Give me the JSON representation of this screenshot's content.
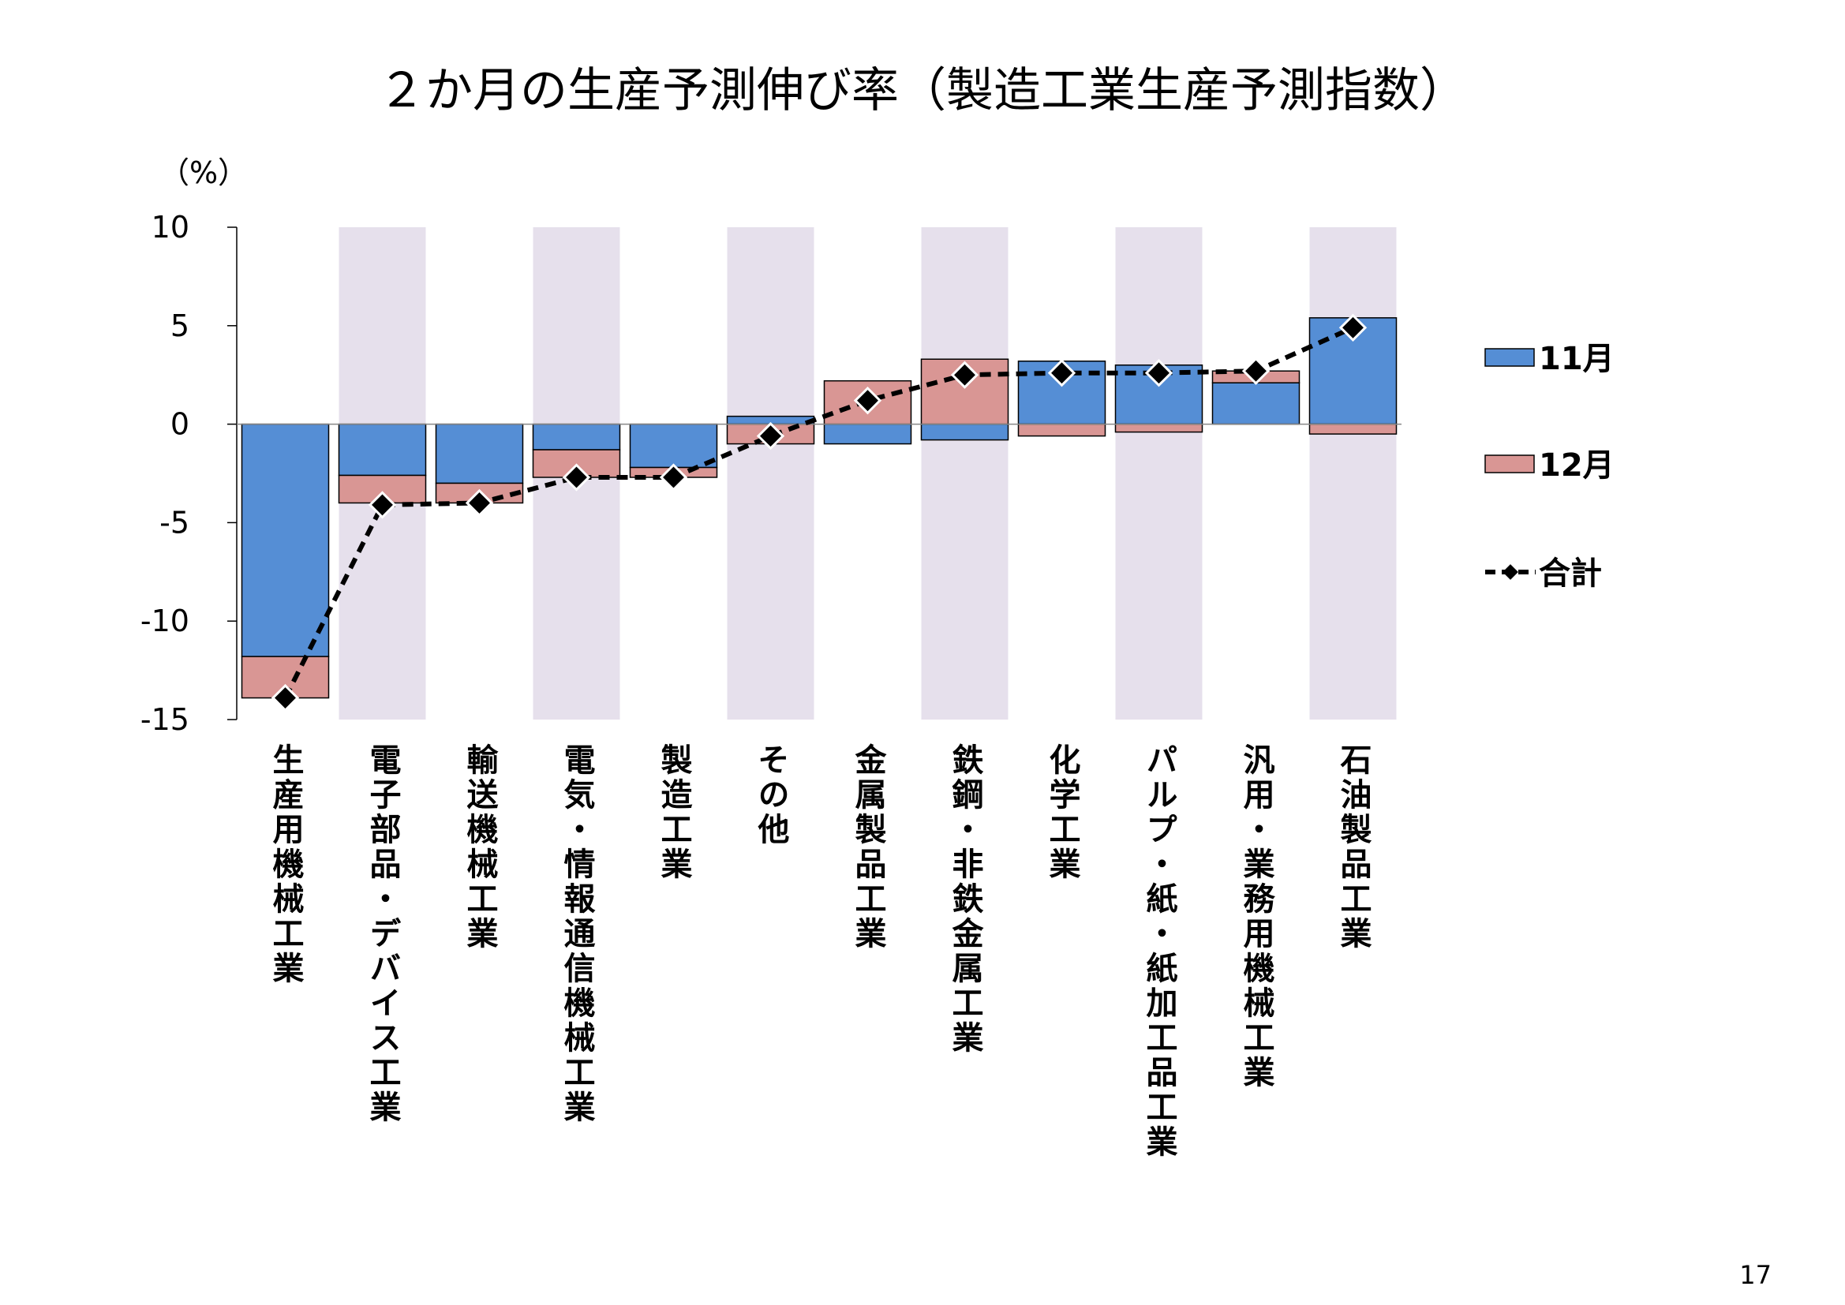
{
  "page_number": "17",
  "chart_data": {
    "type": "bar",
    "stacked": true,
    "title": "２か月の生産予測伸び率（製造工業生産予測指数）",
    "unit_label": "（%）",
    "ylim": [
      -15,
      10
    ],
    "yticks": [
      "10",
      "5",
      "0",
      "-5",
      "-10",
      "-15"
    ],
    "ytick_values": [
      10,
      5,
      0,
      -5,
      -10,
      -15
    ],
    "categories": [
      "生産用機械工業",
      "電子部品・デバイス工業",
      "輸送機械工業",
      "電気・情報通信機械工業",
      "製造工業",
      "その他",
      "金属製品工業",
      "鉄鋼・非鉄金属工業",
      "化学工業",
      "パルプ・紙・紙加工品工業",
      "汎用・業務用機械工業",
      "石油製品工業"
    ],
    "series": [
      {
        "name": "11月",
        "type": "bar",
        "color": "#558ED5",
        "values": [
          -11.8,
          -2.6,
          -3.0,
          -1.3,
          -2.2,
          0.4,
          -1.0,
          -0.8,
          3.2,
          3.0,
          2.1,
          5.4
        ]
      },
      {
        "name": "12月",
        "type": "bar",
        "color": "#D99694",
        "values": [
          -2.1,
          -1.4,
          -1.0,
          -1.4,
          -0.5,
          -1.0,
          2.2,
          3.3,
          -0.6,
          -0.4,
          0.6,
          -0.5
        ]
      },
      {
        "name": "合計",
        "type": "line",
        "color": "#000000",
        "dashed": true,
        "marker": "diamond",
        "values": [
          -13.9,
          -4.1,
          -4.0,
          -2.7,
          -2.7,
          -0.6,
          1.2,
          2.5,
          2.6,
          2.6,
          2.7,
          4.9
        ]
      }
    ],
    "shaded_categories": [
      1,
      3,
      5,
      7,
      9,
      11
    ],
    "shade_color": "#E6E0EC",
    "legend_position": "right",
    "grid": false
  }
}
